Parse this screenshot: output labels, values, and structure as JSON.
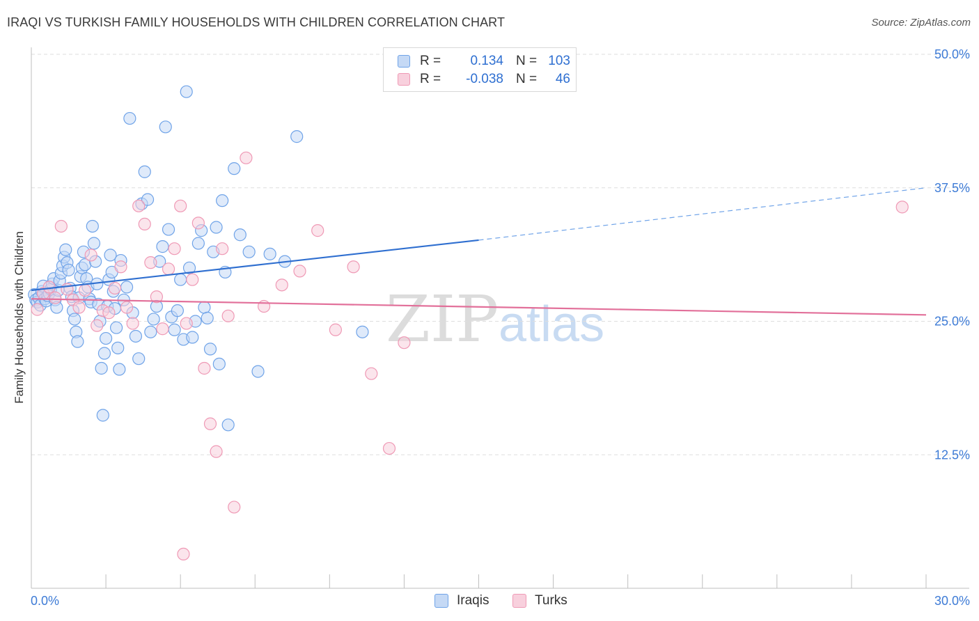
{
  "header": {
    "title": "IRAQI VS TURKISH FAMILY HOUSEHOLDS WITH CHILDREN CORRELATION CHART",
    "source": "Source: ZipAtlas.com"
  },
  "watermark": {
    "zip": "ZIP",
    "atlas": "atlas"
  },
  "legend": {
    "r_label": "R =",
    "n_label": "N =",
    "rows": [
      {
        "r": "0.134",
        "n": "103",
        "color": "#6fa3e8",
        "fill": "#c5d9f5"
      },
      {
        "r": "-0.038",
        "n": "46",
        "color": "#ef99b5",
        "fill": "#f8d0dd"
      }
    ]
  },
  "bottom_legend": [
    {
      "label": "Iraqis",
      "color": "#6fa3e8",
      "fill": "#c5d9f5"
    },
    {
      "label": "Turks",
      "color": "#ef99b5",
      "fill": "#f8d0dd"
    }
  ],
  "chart_data": {
    "type": "scatter",
    "title": "IRAQI VS TURKISH FAMILY HOUSEHOLDS WITH CHILDREN CORRELATION CHART",
    "xlabel": "",
    "ylabel": "Family Households with Children",
    "xlim": [
      0,
      30
    ],
    "ylim": [
      0,
      50
    ],
    "x_tick_labels": [
      "0.0%",
      "30.0%"
    ],
    "y_ticks": [
      12.5,
      25.0,
      37.5,
      50.0
    ],
    "y_tick_labels": [
      "12.5%",
      "25.0%",
      "37.5%",
      "50.0%"
    ],
    "grid": true,
    "legend_position": "top-center",
    "series": [
      {
        "name": "Iraqis",
        "color": "#6fa3e8",
        "fill": "#c5d9f5",
        "trend": {
          "x0": 0,
          "y0": 27.9,
          "x1": 15.0,
          "y1": 32.6,
          "dash_x1": 30,
          "dash_y1": 37.5
        },
        "points": [
          [
            0.1,
            27.5
          ],
          [
            0.15,
            27.0
          ],
          [
            0.2,
            26.8
          ],
          [
            0.25,
            27.2
          ],
          [
            0.3,
            26.5
          ],
          [
            0.35,
            27.8
          ],
          [
            0.4,
            28.3
          ],
          [
            0.45,
            27.1
          ],
          [
            0.5,
            26.9
          ],
          [
            0.55,
            27.4
          ],
          [
            0.6,
            27.6
          ],
          [
            0.65,
            28.0
          ],
          [
            0.7,
            28.5
          ],
          [
            0.75,
            29.0
          ],
          [
            0.8,
            27.0
          ],
          [
            0.85,
            26.3
          ],
          [
            0.9,
            27.9
          ],
          [
            0.95,
            28.8
          ],
          [
            1.0,
            29.5
          ],
          [
            1.05,
            30.2
          ],
          [
            1.1,
            31.0
          ],
          [
            1.15,
            31.7
          ],
          [
            1.2,
            30.5
          ],
          [
            1.25,
            29.8
          ],
          [
            1.3,
            28.1
          ],
          [
            1.35,
            27.3
          ],
          [
            1.4,
            26.0
          ],
          [
            1.45,
            25.2
          ],
          [
            1.5,
            24.0
          ],
          [
            1.55,
            23.1
          ],
          [
            1.6,
            27.2
          ],
          [
            1.65,
            29.2
          ],
          [
            1.7,
            30.0
          ],
          [
            1.75,
            31.5
          ],
          [
            1.8,
            30.3
          ],
          [
            1.85,
            29.0
          ],
          [
            1.9,
            28.2
          ],
          [
            1.95,
            27.1
          ],
          [
            2.0,
            26.8
          ],
          [
            2.05,
            33.9
          ],
          [
            2.1,
            32.3
          ],
          [
            2.15,
            30.6
          ],
          [
            2.2,
            28.5
          ],
          [
            2.25,
            26.6
          ],
          [
            2.3,
            25.0
          ],
          [
            2.35,
            20.6
          ],
          [
            2.4,
            16.2
          ],
          [
            2.45,
            22.0
          ],
          [
            2.5,
            23.4
          ],
          [
            2.55,
            26.4
          ],
          [
            2.6,
            28.9
          ],
          [
            2.65,
            31.2
          ],
          [
            2.7,
            29.6
          ],
          [
            2.75,
            27.8
          ],
          [
            2.8,
            26.2
          ],
          [
            2.85,
            24.4
          ],
          [
            2.9,
            22.5
          ],
          [
            2.95,
            20.5
          ],
          [
            3.0,
            30.7
          ],
          [
            3.1,
            27.0
          ],
          [
            3.2,
            28.2
          ],
          [
            3.3,
            44.0
          ],
          [
            3.4,
            25.8
          ],
          [
            3.5,
            23.6
          ],
          [
            3.6,
            21.5
          ],
          [
            3.7,
            36.0
          ],
          [
            3.8,
            39.0
          ],
          [
            3.9,
            36.4
          ],
          [
            4.0,
            24.0
          ],
          [
            4.1,
            25.2
          ],
          [
            4.2,
            26.4
          ],
          [
            4.3,
            30.6
          ],
          [
            4.4,
            32.0
          ],
          [
            4.5,
            43.2
          ],
          [
            4.6,
            33.6
          ],
          [
            4.7,
            25.4
          ],
          [
            4.8,
            24.2
          ],
          [
            4.9,
            26.0
          ],
          [
            5.0,
            28.9
          ],
          [
            5.1,
            23.3
          ],
          [
            5.2,
            46.5
          ],
          [
            5.3,
            30.0
          ],
          [
            5.4,
            23.5
          ],
          [
            5.5,
            25.0
          ],
          [
            5.6,
            32.3
          ],
          [
            5.7,
            33.5
          ],
          [
            5.8,
            26.3
          ],
          [
            5.9,
            25.3
          ],
          [
            6.0,
            22.4
          ],
          [
            6.1,
            31.5
          ],
          [
            6.2,
            33.8
          ],
          [
            6.3,
            21.0
          ],
          [
            6.4,
            36.3
          ],
          [
            6.5,
            29.6
          ],
          [
            6.6,
            15.3
          ],
          [
            6.8,
            39.3
          ],
          [
            7.0,
            33.1
          ],
          [
            7.3,
            31.5
          ],
          [
            7.6,
            20.3
          ],
          [
            8.0,
            31.3
          ],
          [
            8.5,
            30.6
          ],
          [
            8.9,
            42.3
          ],
          [
            11.1,
            24.0
          ]
        ]
      },
      {
        "name": "Turks",
        "color": "#ef99b5",
        "fill": "#f8d0dd",
        "trend": {
          "x0": 0,
          "y0": 27.1,
          "x1": 30,
          "y1": 25.6
        },
        "points": [
          [
            0.2,
            26.1
          ],
          [
            0.4,
            27.6
          ],
          [
            0.6,
            28.2
          ],
          [
            0.8,
            27.2
          ],
          [
            1.0,
            33.9
          ],
          [
            1.2,
            28.0
          ],
          [
            1.4,
            27.0
          ],
          [
            1.6,
            26.3
          ],
          [
            1.8,
            27.9
          ],
          [
            2.0,
            31.2
          ],
          [
            2.2,
            24.6
          ],
          [
            2.4,
            26.0
          ],
          [
            2.6,
            25.8
          ],
          [
            2.8,
            28.1
          ],
          [
            3.0,
            30.1
          ],
          [
            3.2,
            26.3
          ],
          [
            3.4,
            24.8
          ],
          [
            3.6,
            35.8
          ],
          [
            3.8,
            34.1
          ],
          [
            4.0,
            30.5
          ],
          [
            4.2,
            27.3
          ],
          [
            4.4,
            24.3
          ],
          [
            4.6,
            29.9
          ],
          [
            4.8,
            31.8
          ],
          [
            5.0,
            35.8
          ],
          [
            5.2,
            24.8
          ],
          [
            5.4,
            28.9
          ],
          [
            5.6,
            34.2
          ],
          [
            5.8,
            20.6
          ],
          [
            6.0,
            15.4
          ],
          [
            6.2,
            12.8
          ],
          [
            6.4,
            31.8
          ],
          [
            6.6,
            25.5
          ],
          [
            6.8,
            7.6
          ],
          [
            7.2,
            40.3
          ],
          [
            7.8,
            26.4
          ],
          [
            8.4,
            28.4
          ],
          [
            9.0,
            29.7
          ],
          [
            9.6,
            33.5
          ],
          [
            10.2,
            24.2
          ],
          [
            10.8,
            30.1
          ],
          [
            11.4,
            20.1
          ],
          [
            12.0,
            13.1
          ],
          [
            5.1,
            3.2
          ],
          [
            12.5,
            23.0
          ],
          [
            29.2,
            35.7
          ]
        ]
      }
    ]
  }
}
